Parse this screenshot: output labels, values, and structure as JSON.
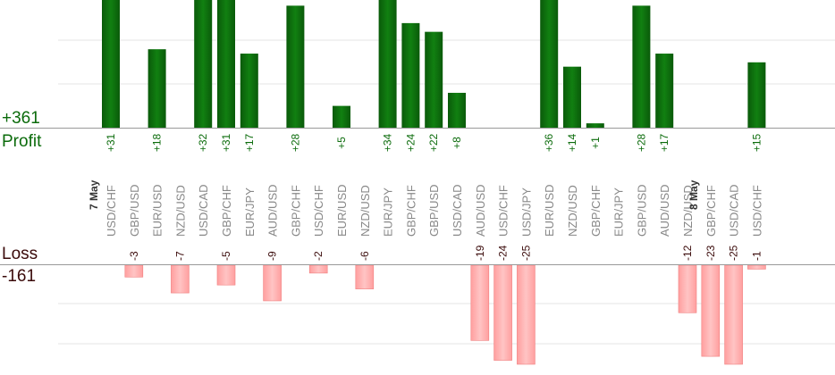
{
  "chart_data": {
    "type": "bar",
    "dates": [
      {
        "label": "7 May",
        "at_index": 0
      },
      {
        "label": "8 May",
        "at_index": 26
      }
    ],
    "categories": [
      "USD/CHF",
      "GBP/USD",
      "EUR/USD",
      "NZD/USD",
      "USD/CAD",
      "GBP/CHF",
      "EUR/JPY",
      "AUD/USD",
      "GBP/CHF",
      "USD/CHF",
      "EUR/USD",
      "NZD/USD",
      "EUR/JPY",
      "GBP/CHF",
      "GBP/USD",
      "USD/CAD",
      "AUD/USD",
      "USD/CHF",
      "USD/JPY",
      "EUR/USD",
      "NZD/USD",
      "GBP/CHF",
      "EUR/JPY",
      "GBP/USD",
      "AUD/USD",
      "NZD/USD",
      "GBP/CHF",
      "USD/CAD",
      "USD/CHF"
    ],
    "profit": [
      31,
      null,
      18,
      null,
      32,
      31,
      17,
      null,
      28,
      null,
      5,
      null,
      34,
      24,
      22,
      8,
      null,
      null,
      null,
      36,
      14,
      1,
      null,
      28,
      17,
      null,
      null,
      null,
      15
    ],
    "loss": [
      null,
      -3,
      null,
      -7,
      null,
      -5,
      null,
      -9,
      null,
      -2,
      null,
      -6,
      null,
      null,
      null,
      null,
      -19,
      -24,
      -25,
      null,
      null,
      null,
      null,
      null,
      null,
      -12,
      -23,
      -25,
      -1
    ],
    "profit_label": "Profit",
    "loss_label": "Loss",
    "profit_total": "+361",
    "loss_total": "-161",
    "colors": {
      "profit": "#0b6b0b",
      "loss": "#ffb3b3",
      "profit_text": "#0b6b0b",
      "loss_text": "#3a0a0a",
      "grid": "#e6e6e6",
      "axis": "#999999",
      "category_text": "#888888",
      "date_text": "#333333"
    }
  }
}
